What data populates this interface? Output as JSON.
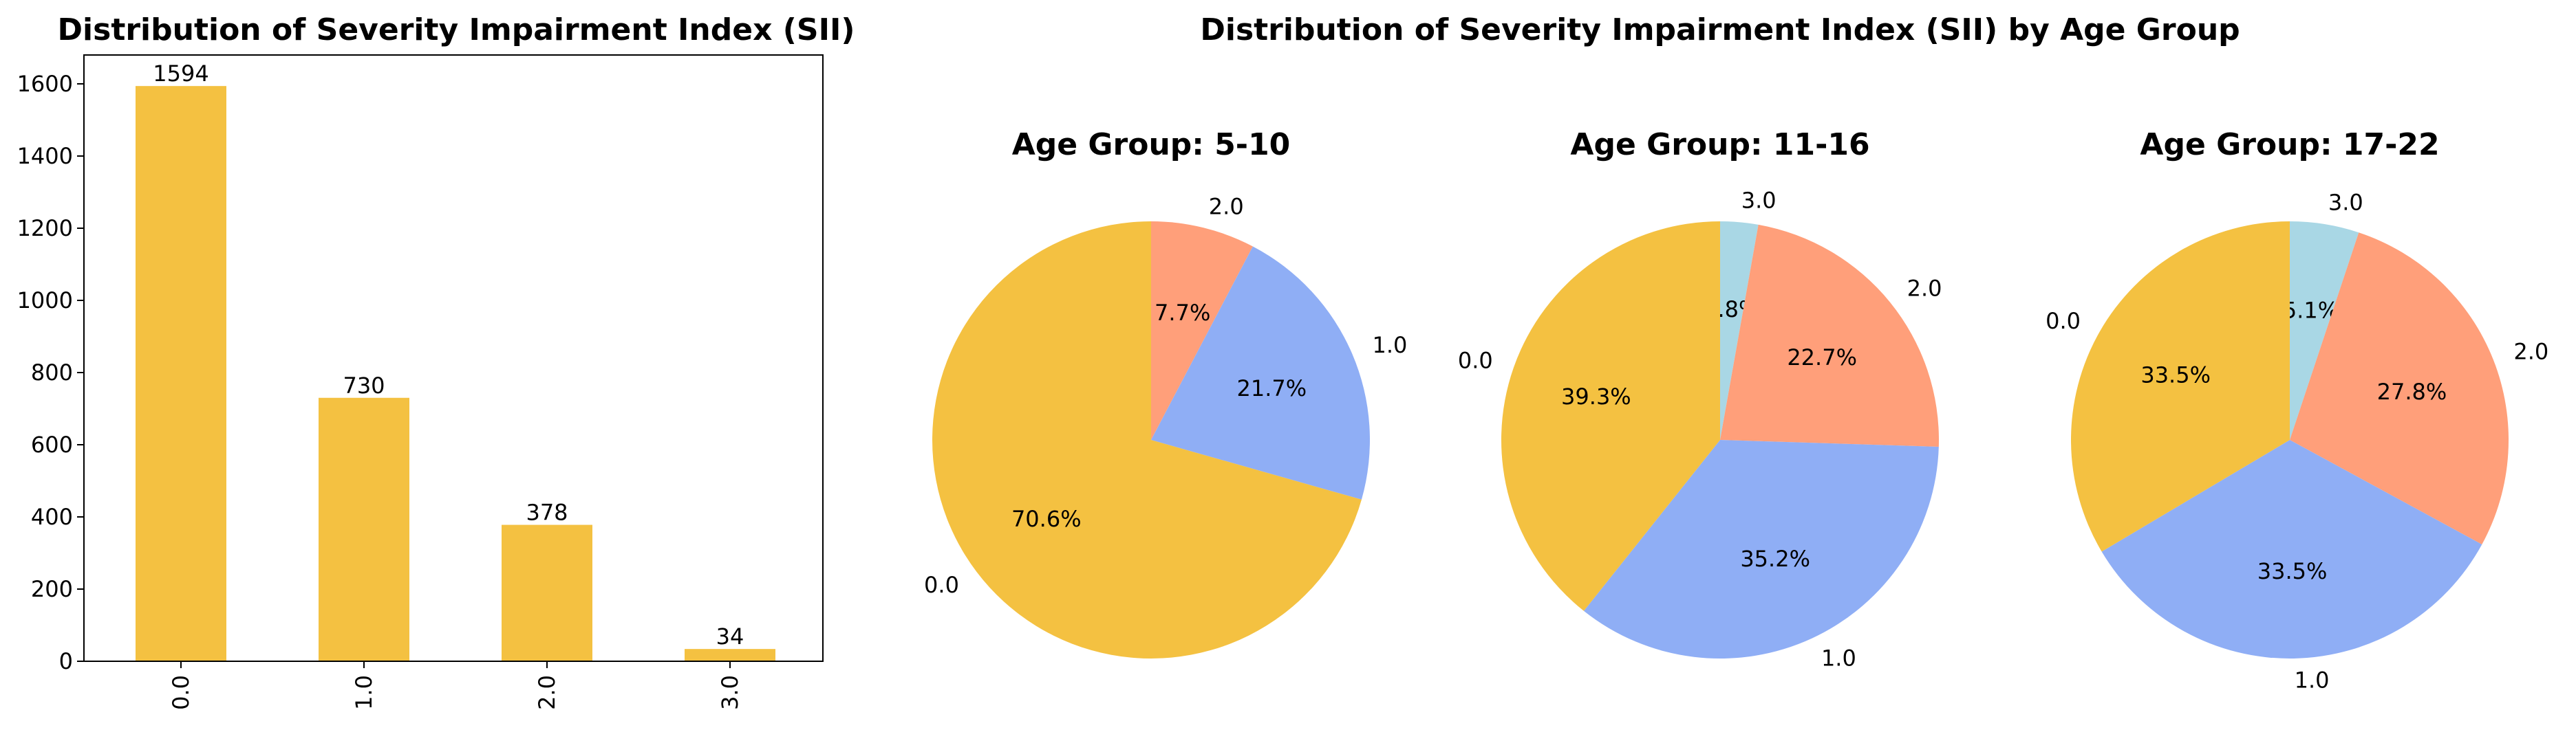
{
  "chart_data": [
    {
      "type": "bar",
      "title": "Distribution of Severity Impairment Index (SII)",
      "categories": [
        "0.0",
        "1.0",
        "2.0",
        "3.0"
      ],
      "values": [
        1594,
        730,
        378,
        34
      ],
      "value_labels": [
        "1594",
        "730",
        "378",
        "34"
      ],
      "xlabel": "",
      "ylabel": "",
      "ylim": [
        0,
        1680
      ],
      "yticks": [
        0,
        200,
        400,
        600,
        800,
        1000,
        1200,
        1400,
        1600
      ],
      "ytick_labels": [
        "0",
        "200",
        "400",
        "600",
        "800",
        "1000",
        "1200",
        "1400",
        "1600"
      ],
      "grid": false,
      "bar_color": "#f4c141"
    },
    {
      "type": "pie",
      "title": "Distribution of Severity Impairment Index (SII) by Age Group",
      "colors": {
        "0.0": "#f4c141",
        "1.0": "#8faef5",
        "2.0": "#ff9f7a",
        "3.0": "#a9d7e5"
      },
      "pies": [
        {
          "title": "Age Group: 5-10",
          "labels": [
            "0.0",
            "1.0",
            "2.0"
          ],
          "values": [
            70.6,
            21.7,
            7.7
          ],
          "pct_labels": [
            "70.6%",
            "21.7%",
            "7.7%"
          ]
        },
        {
          "title": "Age Group: 11-16",
          "labels": [
            "0.0",
            "1.0",
            "2.0",
            "3.0"
          ],
          "values": [
            39.3,
            35.2,
            22.7,
            2.8
          ],
          "pct_labels": [
            "39.3%",
            "35.2%",
            "22.7%",
            "2.8%"
          ]
        },
        {
          "title": "Age Group: 17-22",
          "labels": [
            "0.0",
            "1.0",
            "2.0",
            "3.0"
          ],
          "values": [
            33.5,
            33.5,
            27.8,
            5.1
          ],
          "pct_labels": [
            "33.5%",
            "33.5%",
            "27.8%",
            "5.1%"
          ]
        }
      ]
    }
  ]
}
